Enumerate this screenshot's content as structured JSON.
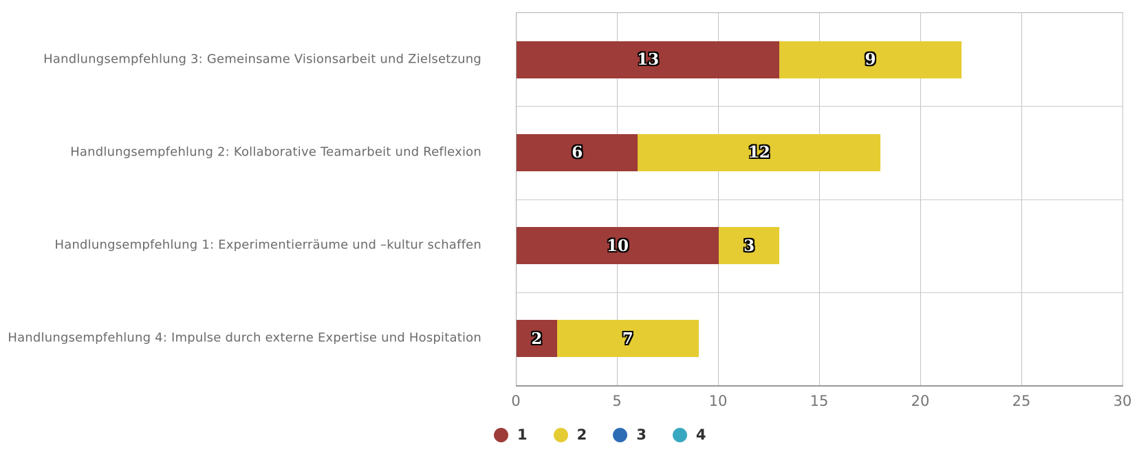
{
  "chart_data": {
    "type": "bar",
    "orientation": "horizontal",
    "stacked": true,
    "title": "",
    "xlabel": "",
    "ylabel": "",
    "xlim": [
      0,
      30
    ],
    "x_ticks": [
      0,
      5,
      10,
      15,
      20,
      25,
      30
    ],
    "grid": true,
    "legend_position": "bottom",
    "categories": [
      "Handlungsempfehlung 3: Gemeinsame Visionsarbeit und Zielsetzung",
      "Handlungsempfehlung 2: Kollaborative Teamarbeit und Reflexion",
      "Handlungsempfehlung 1: Experimentierräume und –kultur schaffen",
      "Handlungsempfehlung 4: Impulse durch externe Expertise und Hospitation"
    ],
    "series": [
      {
        "name": "1",
        "color": "#9e3c39",
        "values": [
          13,
          6,
          10,
          2
        ]
      },
      {
        "name": "2",
        "color": "#e5cc33",
        "values": [
          9,
          12,
          3,
          7
        ]
      }
    ],
    "legend": [
      {
        "label": "1",
        "color": "#9e3c39"
      },
      {
        "label": "2",
        "color": "#e5cc33"
      },
      {
        "label": "3",
        "color": "#2e6cb5"
      },
      {
        "label": "4",
        "color": "#38a8c0"
      }
    ]
  }
}
